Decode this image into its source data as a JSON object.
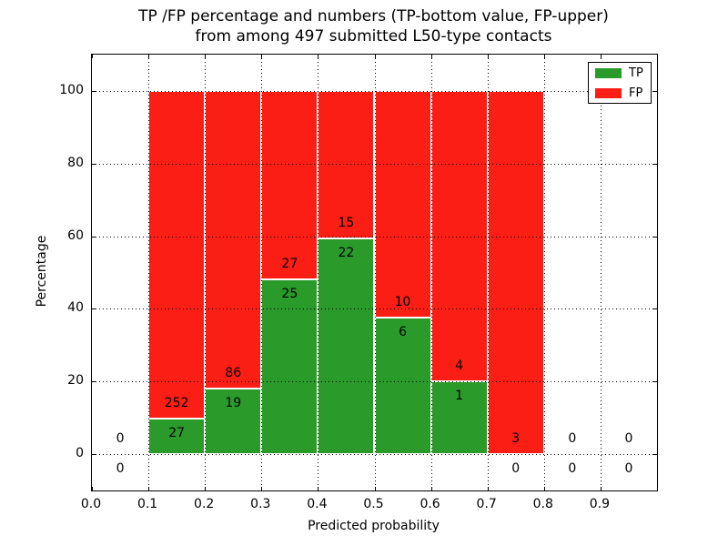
{
  "figure": {
    "title_line1": "TP /FP percentage and numbers (TP-bottom value, FP-upper)",
    "title_line2": "from among 497 submitted L50-type contacts",
    "xlabel": "Predicted probability",
    "ylabel": "Percentage"
  },
  "chart_data": {
    "type": "bar",
    "stacked": true,
    "title": "TP /FP percentage and numbers (TP-bottom value, FP-upper) from among 497 submitted L50-type contacts",
    "xlabel": "Predicted probability",
    "ylabel": "Percentage",
    "xlim": [
      0.0,
      1.0
    ],
    "ylim": [
      -10,
      110
    ],
    "grid": true,
    "legend_position": "upper right",
    "colors": {
      "tp": "#2a9a2a",
      "fp": "#fb1e15",
      "bar_edge": "#ffffff",
      "grid": "#000000",
      "frame": "#000000"
    },
    "legend": [
      {
        "label": "TP",
        "color": "#2a9a2a"
      },
      {
        "label": "FP",
        "color": "#fb1e15"
      }
    ],
    "yticks": [
      {
        "value": 0,
        "label": "0"
      },
      {
        "value": 20,
        "label": "20"
      },
      {
        "value": 40,
        "label": "40"
      },
      {
        "value": 60,
        "label": "60"
      },
      {
        "value": 80,
        "label": "80"
      },
      {
        "value": 100,
        "label": "100"
      }
    ],
    "xticks": [
      {
        "value": 0.0,
        "label": "0.0"
      },
      {
        "value": 0.1,
        "label": "0.1"
      },
      {
        "value": 0.2,
        "label": "0.2"
      },
      {
        "value": 0.3,
        "label": "0.3"
      },
      {
        "value": 0.4,
        "label": "0.4"
      },
      {
        "value": 0.5,
        "label": "0.5"
      },
      {
        "value": 0.6,
        "label": "0.6"
      },
      {
        "value": 0.7,
        "label": "0.7"
      },
      {
        "value": 0.8,
        "label": "0.8"
      },
      {
        "value": 0.9,
        "label": "0.9"
      }
    ],
    "bins": [
      {
        "range": [
          0.0,
          0.1
        ],
        "tp": 0,
        "fp": 0
      },
      {
        "range": [
          0.1,
          0.2
        ],
        "tp": 27,
        "fp": 252
      },
      {
        "range": [
          0.2,
          0.3
        ],
        "tp": 19,
        "fp": 86
      },
      {
        "range": [
          0.3,
          0.4
        ],
        "tp": 25,
        "fp": 27
      },
      {
        "range": [
          0.4,
          0.5
        ],
        "tp": 22,
        "fp": 15
      },
      {
        "range": [
          0.5,
          0.6
        ],
        "tp": 6,
        "fp": 10
      },
      {
        "range": [
          0.6,
          0.7
        ],
        "tp": 1,
        "fp": 4
      },
      {
        "range": [
          0.7,
          0.8
        ],
        "tp": 0,
        "fp": 3
      },
      {
        "range": [
          0.8,
          0.9
        ],
        "tp": 0,
        "fp": 0
      },
      {
        "range": [
          0.9,
          1.0
        ],
        "tp": 0,
        "fp": 0
      }
    ]
  }
}
